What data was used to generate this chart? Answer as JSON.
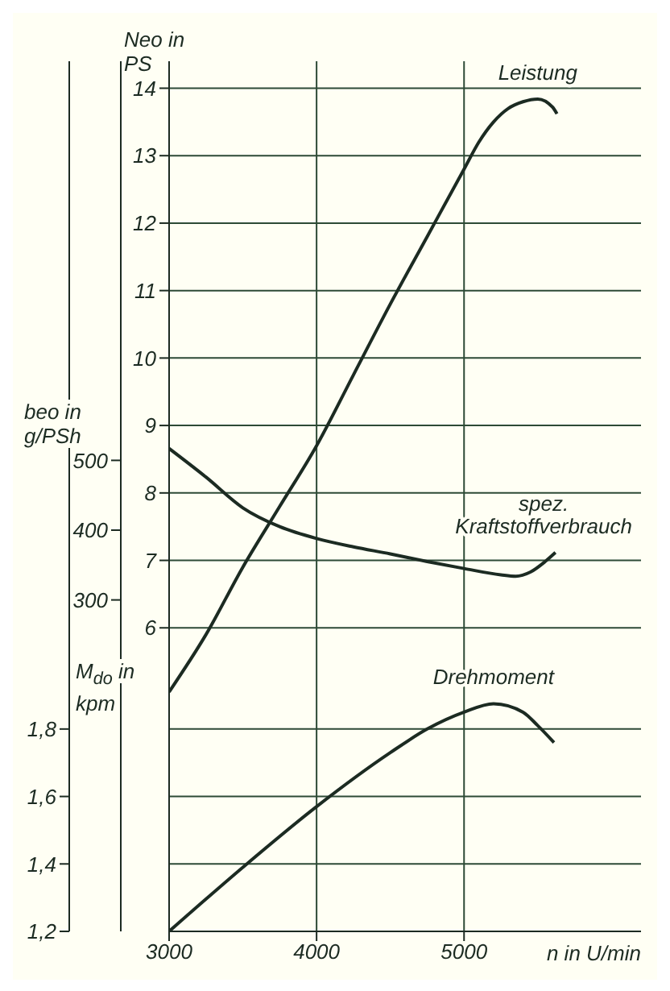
{
  "chart_data": {
    "type": "line",
    "xlabel": "n in U/min",
    "ylabel": "Neo in PS",
    "y2label": "beo in g/PSh",
    "y3label": "M$_{do}$ in kpm",
    "xlim": [
      3000,
      6200
    ],
    "xticks": [
      3000,
      4000,
      5000
    ],
    "ylim": [
      1.5,
      14.4
    ],
    "yticks": [
      6,
      7,
      8,
      9,
      10,
      11,
      12,
      13,
      14
    ],
    "y2lim": [
      -175,
      1072
    ],
    "y2ticks": [
      300,
      400,
      500
    ],
    "y3lim": [
      1.2,
      3.78
    ],
    "y3ticks": [
      {
        "value": 1.2,
        "label": "1,2"
      },
      {
        "value": 1.4,
        "label": "1,4"
      },
      {
        "value": 1.6,
        "label": "1,6"
      },
      {
        "value": 1.8,
        "label": "1,8"
      }
    ],
    "grid": true,
    "series": [
      {
        "name": "Leistung",
        "color": "#1c2b22",
        "x": [
          3000,
          3250,
          3500,
          3750,
          4000,
          4250,
          4500,
          4750,
          5000,
          5100,
          5200,
          5300,
          5400,
          5500,
          5600,
          5630
        ],
        "values": [
          5.05,
          5.9,
          6.9,
          7.8,
          8.7,
          9.75,
          10.8,
          11.8,
          12.8,
          13.2,
          13.5,
          13.7,
          13.8,
          13.84,
          13.72,
          13.62
        ]
      },
      {
        "name": "spez. Kraftstoffverbrauch",
        "color": "#1c2b22",
        "axis": "y2",
        "x": [
          3000,
          3250,
          3500,
          3750,
          4000,
          4250,
          4500,
          4750,
          5000,
          5250,
          5350,
          5450,
          5550,
          5620
        ],
        "values": [
          517,
          476,
          432,
          405,
          388,
          376,
          366,
          355,
          345,
          336,
          334,
          340,
          355,
          368
        ]
      },
      {
        "name": "Drehmoment",
        "color": "#1c2b22",
        "axis": "y3",
        "x": [
          3000,
          3500,
          4000,
          4500,
          4750,
          5000,
          5200,
          5400,
          5500,
          5610
        ],
        "values": [
          1.2,
          1.39,
          1.57,
          1.73,
          1.8,
          1.85,
          1.875,
          1.85,
          1.81,
          1.76
        ]
      }
    ]
  }
}
